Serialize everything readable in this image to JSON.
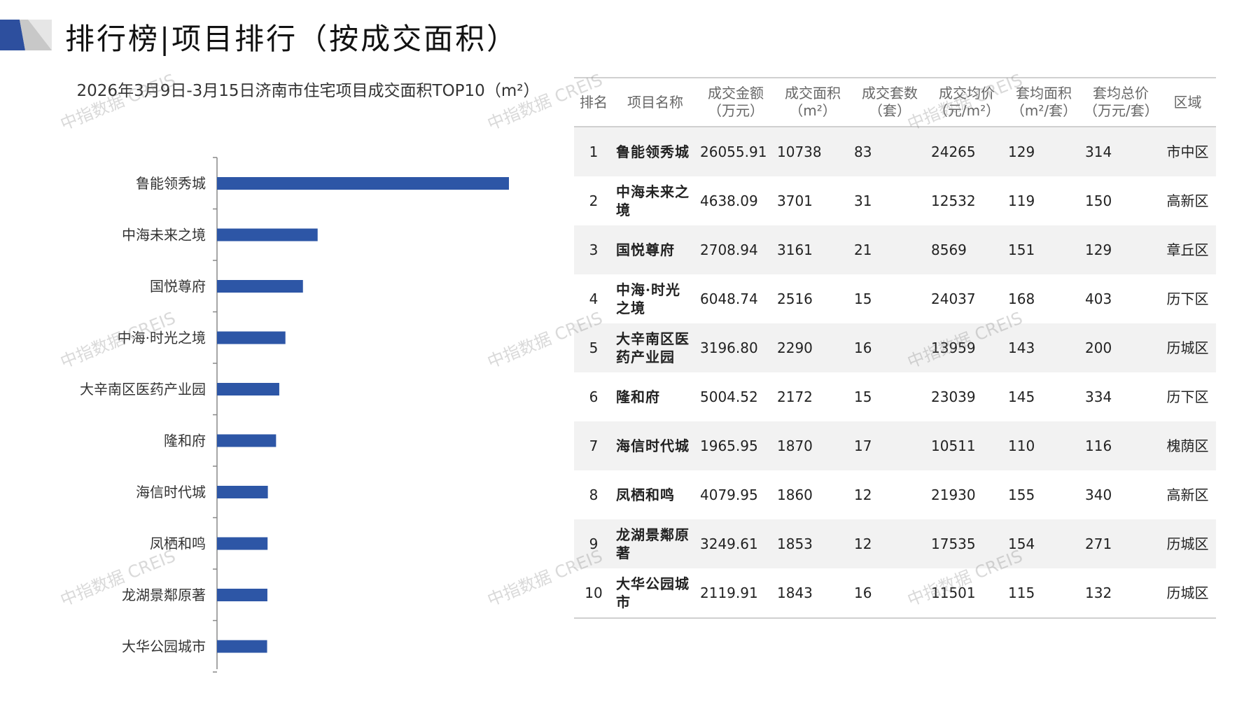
{
  "header": {
    "title": "排行榜|项目排行（按成交面积）",
    "accent_color": "#2d4f9e"
  },
  "chart_data": {
    "type": "bar",
    "orientation": "horizontal",
    "title": "2026年3月9日-3月15日济南市住宅项目成交面积TOP10（m²）",
    "categories": [
      "鲁能领秀城",
      "中海未来之境",
      "国悦尊府",
      "中海·时光之境",
      "大辛南区医药产业园",
      "隆和府",
      "海信时代城",
      "凤栖和鸣",
      "龙湖景鄰原著",
      "大华公园城市"
    ],
    "values": [
      10738,
      3701,
      3161,
      2516,
      2290,
      2172,
      1870,
      1860,
      1853,
      1843
    ],
    "xlim": [
      0,
      10738
    ],
    "bar_color": "#2d56a6",
    "grid": false,
    "legend": "none"
  },
  "table": {
    "headers": [
      {
        "line1": "排名",
        "line2": ""
      },
      {
        "line1": "项目名称",
        "line2": ""
      },
      {
        "line1": "成交金额",
        "line2": "（万元）"
      },
      {
        "line1": "成交面积",
        "line2": "（m²）"
      },
      {
        "line1": "成交套数",
        "line2": "（套）"
      },
      {
        "line1": "成交均价",
        "line2": "（元/m²）"
      },
      {
        "line1": "套均面积",
        "line2": "（m²/套）"
      },
      {
        "line1": "套均总价",
        "line2": "（万元/套）"
      },
      {
        "line1": "区域",
        "line2": ""
      }
    ],
    "rows": [
      {
        "rank": "1",
        "name": "鲁能领秀城",
        "amount": "26055.91",
        "area": "10738",
        "units": "83",
        "price": "24265",
        "avg_area": "129",
        "avg_total": "314",
        "district": "市中区"
      },
      {
        "rank": "2",
        "name": "中海未来之境",
        "amount": "4638.09",
        "area": "3701",
        "units": "31",
        "price": "12532",
        "avg_area": "119",
        "avg_total": "150",
        "district": "高新区"
      },
      {
        "rank": "3",
        "name": "国悦尊府",
        "amount": "2708.94",
        "area": "3161",
        "units": "21",
        "price": "8569",
        "avg_area": "151",
        "avg_total": "129",
        "district": "章丘区"
      },
      {
        "rank": "4",
        "name": "中海·时光之境",
        "amount": "6048.74",
        "area": "2516",
        "units": "15",
        "price": "24037",
        "avg_area": "168",
        "avg_total": "403",
        "district": "历下区"
      },
      {
        "rank": "5",
        "name": "大辛南区医药产业园",
        "amount": "3196.80",
        "area": "2290",
        "units": "16",
        "price": "13959",
        "avg_area": "143",
        "avg_total": "200",
        "district": "历城区"
      },
      {
        "rank": "6",
        "name": "隆和府",
        "amount": "5004.52",
        "area": "2172",
        "units": "15",
        "price": "23039",
        "avg_area": "145",
        "avg_total": "334",
        "district": "历下区"
      },
      {
        "rank": "7",
        "name": "海信时代城",
        "amount": "1965.95",
        "area": "1870",
        "units": "17",
        "price": "10511",
        "avg_area": "110",
        "avg_total": "116",
        "district": "槐荫区"
      },
      {
        "rank": "8",
        "name": "凤栖和鸣",
        "amount": "4079.95",
        "area": "1860",
        "units": "12",
        "price": "21930",
        "avg_area": "155",
        "avg_total": "340",
        "district": "高新区"
      },
      {
        "rank": "9",
        "name": "龙湖景鄰原著",
        "amount": "3249.61",
        "area": "1853",
        "units": "12",
        "price": "17535",
        "avg_area": "154",
        "avg_total": "271",
        "district": "历城区"
      },
      {
        "rank": "10",
        "name": "大华公园城市",
        "amount": "2119.91",
        "area": "1843",
        "units": "16",
        "price": "11501",
        "avg_area": "115",
        "avg_total": "132",
        "district": "历城区"
      }
    ]
  },
  "watermark": "中指数据 CREIS"
}
